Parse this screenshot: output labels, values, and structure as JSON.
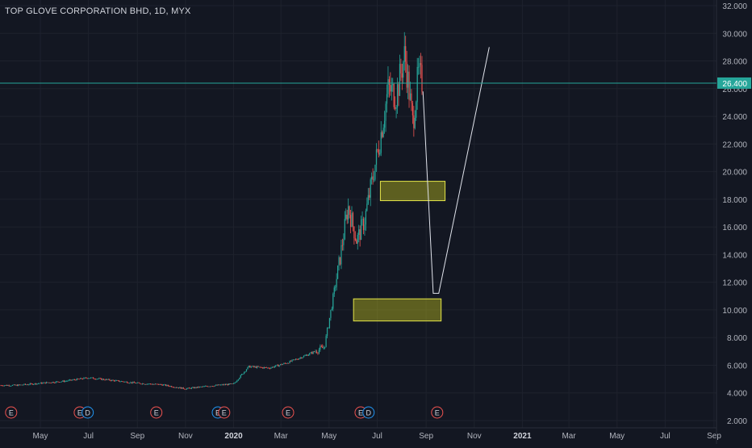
{
  "chart_data": {
    "type": "candlestick",
    "title": "TOP GLOVE CORPORATION BHD, 1D, MYX",
    "ylim": [
      2,
      32
    ],
    "y_ticks": [
      "32.000",
      "30.000",
      "28.000",
      "26.000",
      "24.000",
      "22.000",
      "20.000",
      "18.000",
      "16.000",
      "14.000",
      "12.000",
      "10.000",
      "8.000",
      "6.000",
      "4.000",
      "2.000"
    ],
    "x_ticks": [
      "May",
      "Jul",
      "Sep",
      "Nov",
      "2020",
      "Mar",
      "May",
      "Jul",
      "Sep",
      "Nov",
      "2021",
      "Mar",
      "May",
      "Jul",
      "Sep"
    ],
    "x_tick_bold": [
      "2020",
      "2021"
    ],
    "price_line": {
      "value": 26.4,
      "label": "26.400",
      "color": "#26a69a"
    },
    "colors": {
      "up": "#26a69a",
      "down": "#ef5350",
      "background": "#131722",
      "grid": "#1e222d",
      "text": "#b2b5be"
    },
    "price_path": [
      [
        "2019-04-01",
        4.55
      ],
      [
        "2019-05-01",
        4.7
      ],
      [
        "2019-06-01",
        4.85
      ],
      [
        "2019-07-01",
        5.1
      ],
      [
        "2019-08-01",
        4.9
      ],
      [
        "2019-09-01",
        4.7
      ],
      [
        "2019-10-01",
        4.6
      ],
      [
        "2019-11-01",
        4.3
      ],
      [
        "2019-12-01",
        4.5
      ],
      [
        "2020-01-01",
        4.65
      ],
      [
        "2020-01-20",
        5.9
      ],
      [
        "2020-02-15",
        5.8
      ],
      [
        "2020-03-10",
        6.2
      ],
      [
        "2020-04-01",
        6.7
      ],
      [
        "2020-04-25",
        7.3
      ],
      [
        "2020-05-05",
        10.5
      ],
      [
        "2020-05-15",
        13.8
      ],
      [
        "2020-05-25",
        17.5
      ],
      [
        "2020-06-05",
        15.0
      ],
      [
        "2020-06-15",
        16.5
      ],
      [
        "2020-06-25",
        19.5
      ],
      [
        "2020-07-05",
        22.5
      ],
      [
        "2020-07-15",
        26.0
      ],
      [
        "2020-07-25",
        25.5
      ],
      [
        "2020-08-05",
        28.5
      ],
      [
        "2020-08-15",
        23.5
      ],
      [
        "2020-08-22",
        27.0
      ],
      [
        "2020-08-28",
        26.4
      ]
    ],
    "earnings_markers": [
      {
        "date": "2019-03-25",
        "label": "E",
        "type": "earnings"
      },
      {
        "date": "2019-06-20",
        "label": "E",
        "type": "earnings"
      },
      {
        "date": "2019-06-30",
        "label": "D",
        "type": "dividend"
      },
      {
        "date": "2019-09-25",
        "label": "E",
        "type": "earnings"
      },
      {
        "date": "2019-12-12",
        "label": "E",
        "type": "dividend"
      },
      {
        "date": "2019-12-20",
        "label": "E",
        "type": "earnings"
      },
      {
        "date": "2020-03-10",
        "label": "E",
        "type": "earnings"
      },
      {
        "date": "2020-06-10",
        "label": "E",
        "type": "earnings"
      },
      {
        "date": "2020-06-20",
        "label": "D",
        "type": "dividend"
      },
      {
        "date": "2020-09-15",
        "label": "E",
        "type": "earnings"
      }
    ],
    "zones": [
      {
        "x0": "2020-07-05",
        "x1": "2020-09-25",
        "y0": 17.9,
        "y1": 19.3
      },
      {
        "x0": "2020-06-01",
        "x1": "2020-09-20",
        "y0": 9.2,
        "y1": 10.8
      }
    ],
    "projection": [
      [
        "2020-08-28",
        25.8
      ],
      [
        "2020-09-10",
        11.2
      ],
      [
        "2020-09-17",
        11.2
      ],
      [
        "2020-11-20",
        29.0
      ]
    ]
  }
}
